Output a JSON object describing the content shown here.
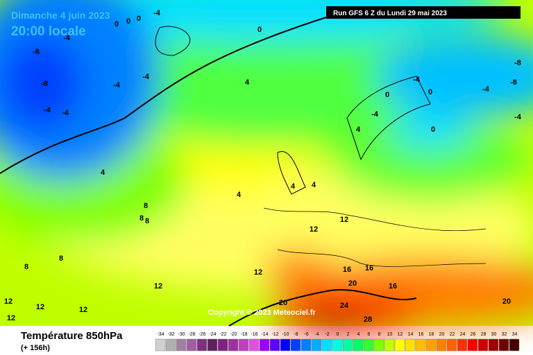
{
  "header": {
    "date": "Dimanche 4 juin 2023",
    "time": "20:00 locale",
    "run": "Run GFS 6 Z du Lundi 29 mai 2023",
    "copyright": "Copyright © 2023 Meteociel.fr"
  },
  "footer": {
    "title": "Température 850hPa",
    "lead": "(+ 156h)"
  },
  "scale": {
    "ticks": [
      -34,
      -32,
      -30,
      -28,
      -26,
      -24,
      -22,
      -20,
      -18,
      -16,
      -14,
      -12,
      -10,
      -8,
      -6,
      -4,
      -2,
      0,
      2,
      4,
      6,
      8,
      10,
      12,
      14,
      16,
      18,
      20,
      22,
      24,
      26,
      28,
      30,
      32,
      34
    ],
    "colors": [
      "#d0d0d0",
      "#b0b0b0",
      "#a080a0",
      "#a060a0",
      "#803080",
      "#602060",
      "#802080",
      "#a030a0",
      "#c040c0",
      "#e050e0",
      "#a000ff",
      "#6000ff",
      "#0000ff",
      "#0040ff",
      "#0080ff",
      "#00b0ff",
      "#00e0ff",
      "#00ffe0",
      "#00ffa0",
      "#00ff60",
      "#30ff30",
      "#80ff00",
      "#c0ff00",
      "#ffff00",
      "#ffe000",
      "#ffc000",
      "#ffa000",
      "#ff8000",
      "#ff6000",
      "#ff3000",
      "#ff0000",
      "#d00000",
      "#a00000",
      "#700000",
      "#400000"
    ]
  },
  "map_labels": [
    0,
    0,
    0,
    -4,
    -4,
    -8,
    -8,
    -4,
    -4,
    -4,
    -4,
    0,
    -4,
    -4,
    0,
    0,
    4,
    4,
    4,
    4,
    4,
    4,
    8,
    8,
    8,
    8,
    8,
    12,
    12,
    12,
    12,
    12,
    12,
    12,
    12,
    16,
    16,
    16,
    20,
    20,
    24,
    28,
    20,
    -8,
    -8,
    -4,
    -4,
    0
  ]
}
